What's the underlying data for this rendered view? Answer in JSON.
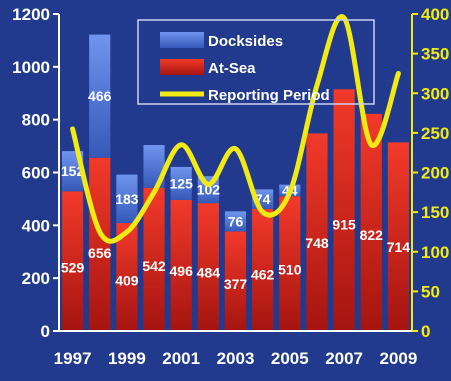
{
  "colors": {
    "background": "#223a8e",
    "docksides": "#4c76d8",
    "at_sea": "#e2231b",
    "reporting_period": "#f1ea13",
    "axis_left": "#ffffff",
    "axis_right": "#f1ea13"
  },
  "chart_data": {
    "type": "bar",
    "stacked": true,
    "categories": [
      "1997",
      "1998",
      "1999",
      "2000",
      "2001",
      "2002",
      "2003",
      "2004",
      "2005",
      "2006",
      "2007",
      "2008",
      "2009"
    ],
    "x_tick_labels": [
      "1997",
      "1999",
      "2001",
      "2003",
      "2005",
      "2007",
      "2009"
    ],
    "series": [
      {
        "name": "Docksides",
        "axis": "left",
        "type": "bar",
        "values": [
          152,
          466,
          183,
          162,
          125,
          102,
          76,
          74,
          44,
          0,
          0,
          0,
          0
        ],
        "labels": [
          "152",
          "466",
          "183",
          "",
          "125",
          "102",
          "76",
          "74",
          "44",
          "",
          "",
          "",
          ""
        ]
      },
      {
        "name": "At-Sea",
        "axis": "left",
        "type": "bar",
        "values": [
          529,
          656,
          409,
          542,
          496,
          484,
          377,
          462,
          510,
          748,
          915,
          822,
          714
        ],
        "labels": [
          "529",
          "656",
          "409",
          "542",
          "496",
          "484",
          "377",
          "462",
          "510",
          "748",
          "915",
          "822",
          "714"
        ]
      },
      {
        "name": "Reporting Period",
        "axis": "right",
        "type": "line",
        "values": [
          255,
          125,
          125,
          175,
          235,
          185,
          230,
          150,
          175,
          310,
          395,
          235,
          325
        ]
      }
    ],
    "y_left": {
      "lim": [
        0,
        1200
      ],
      "ticks": [
        "0",
        "200",
        "400",
        "600",
        "800",
        "1000",
        "1200"
      ]
    },
    "y_right": {
      "lim": [
        0,
        400
      ],
      "ticks": [
        "0",
        "50",
        "100",
        "150",
        "200",
        "250",
        "300",
        "350",
        "400"
      ]
    },
    "legend": {
      "placement": "top-center",
      "entries": [
        "Docksides",
        "At-Sea",
        "Reporting Period"
      ]
    },
    "grid": false
  }
}
